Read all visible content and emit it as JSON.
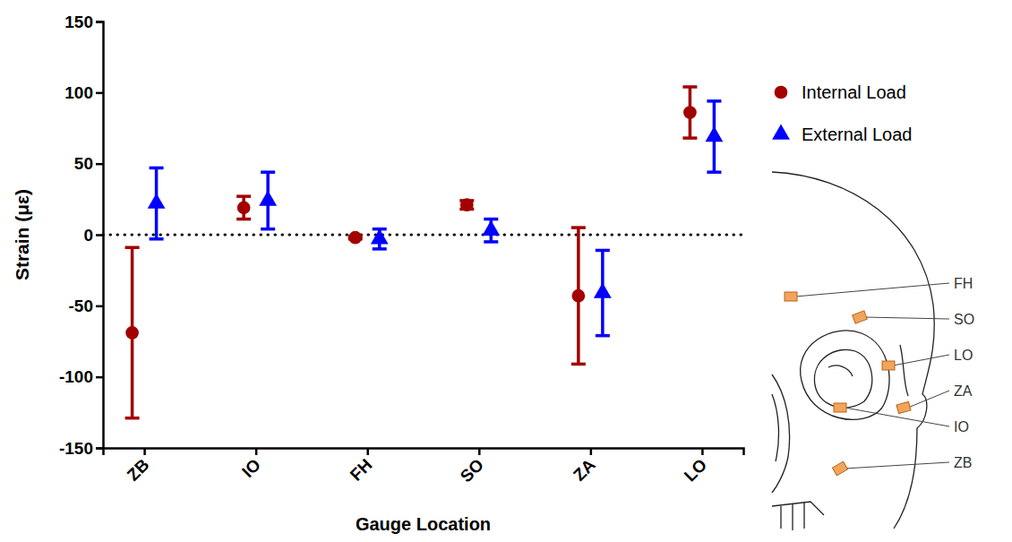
{
  "chart_data": {
    "type": "scatter",
    "x_label": "Gauge Location",
    "y_label": "Strain (με)",
    "categories": [
      "ZB",
      "IO",
      "FH",
      "SO",
      "ZA",
      "LO"
    ],
    "series": [
      {
        "name": "Internal Load",
        "color": "#a30000",
        "marker": "circle",
        "values": [
          -69,
          19,
          -2,
          21,
          -43,
          86
        ],
        "errors": [
          60,
          8,
          1,
          3,
          48,
          18
        ]
      },
      {
        "name": "External Load",
        "color": "#0000ff",
        "marker": "triangle",
        "values": [
          22,
          24,
          -3,
          3,
          -41,
          69
        ],
        "errors": [
          25,
          20,
          7,
          8,
          30,
          25
        ]
      }
    ],
    "ylim": [
      -150,
      150
    ],
    "yticks": [
      -150,
      -100,
      -50,
      0,
      50,
      100,
      150
    ],
    "reference_line": 0,
    "legend": "top-right",
    "annotations": [
      "FH",
      "SO",
      "LO",
      "ZA",
      "IO",
      "ZB"
    ]
  }
}
